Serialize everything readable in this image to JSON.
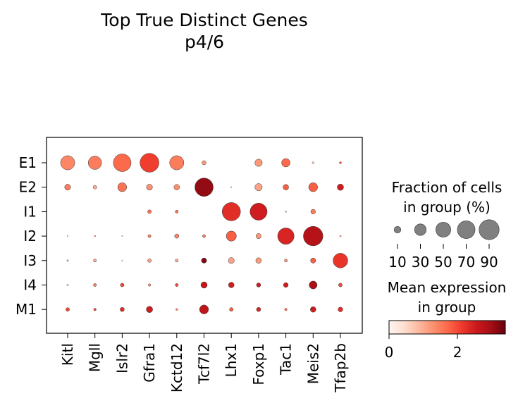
{
  "chart_data": {
    "type": "dotplot",
    "title": "Top True Distinct Genes",
    "subtitle": "p4/6",
    "categories_x": [
      "Kitl",
      "Mgll",
      "Islr2",
      "Gfra1",
      "Kctd12",
      "Tcf7l2",
      "Lhx1",
      "Foxp1",
      "Tac1",
      "Meis2",
      "Tfap2b"
    ],
    "categories_y": [
      "E1",
      "E2",
      "I1",
      "I2",
      "I3",
      "I4",
      "M1"
    ],
    "fraction": [
      [
        45,
        40,
        70,
        80,
        45,
        4,
        0,
        12,
        16,
        1,
        1
      ],
      [
        8,
        3,
        18,
        8,
        7,
        75,
        0.3,
        12,
        7,
        18,
        9
      ],
      [
        0,
        0,
        0,
        3,
        2,
        0,
        75,
        65,
        0.5,
        5,
        0
      ],
      [
        0.3,
        0.6,
        0.3,
        2,
        4,
        2,
        23,
        6,
        60,
        85,
        0.6
      ],
      [
        0.6,
        2,
        0.3,
        3,
        2,
        6,
        8,
        7,
        2,
        6,
        48
      ],
      [
        0.6,
        2,
        3,
        1.5,
        2,
        9,
        7,
        4,
        5,
        14,
        3
      ],
      [
        3,
        1.5,
        4,
        9,
        1,
        18,
        3,
        4,
        1.5,
        7,
        5
      ]
    ],
    "expression": [
      [
        1.4,
        1.5,
        1.7,
        2.1,
        1.5,
        1.2,
        0,
        1.2,
        1.7,
        0.8,
        2.0
      ],
      [
        1.5,
        1.0,
        1.6,
        1.3,
        1.3,
        3.1,
        1.0,
        1.1,
        1.8,
        1.8,
        2.5
      ],
      [
        0,
        0,
        0,
        1.6,
        1.6,
        0,
        2.3,
        2.5,
        0.9,
        1.5,
        0
      ],
      [
        0.5,
        1.0,
        0.6,
        1.5,
        1.4,
        1.5,
        1.8,
        1.2,
        2.4,
        2.8,
        1.0
      ],
      [
        1.3,
        1.0,
        0.6,
        1.1,
        1.0,
        3.2,
        1.1,
        1.2,
        1.2,
        1.8,
        2.2
      ],
      [
        1.0,
        1.5,
        2.0,
        1.5,
        2.0,
        2.6,
        2.5,
        2.5,
        2.5,
        2.9,
        2.0
      ],
      [
        2.0,
        2.0,
        2.3,
        2.5,
        1.5,
        2.7,
        1.8,
        2.4,
        1.6,
        2.5,
        2.3
      ]
    ],
    "size_legend": {
      "title_line1": "Fraction of cells",
      "title_line2": "in group (%)",
      "values": [
        10,
        30,
        50,
        70,
        90
      ]
    },
    "color_legend": {
      "title_line1": "Mean expression",
      "title_line2": "in group",
      "range": [
        0,
        3.4
      ],
      "ticks": [
        0,
        2
      ],
      "colormap": "Reds"
    }
  }
}
